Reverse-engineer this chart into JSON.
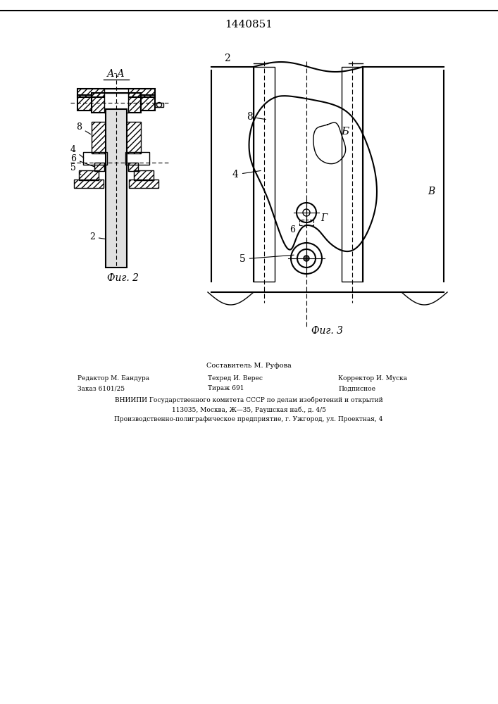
{
  "title": "1440851",
  "fig2_label": "Фиг. 2",
  "fig3_label": "Фиг. 3",
  "section_label": "А-А",
  "bg_color": "#ffffff",
  "line_color": "#000000",
  "footer_col1_line1": "Редактор М. Бандура",
  "footer_col2_line1": "Составитель М. Руфова",
  "footer_col3_line1": "Корректор И. Муска",
  "footer_col2_line2": "Техред И. Верес",
  "footer_col1_line2": "Заказ 6101/25",
  "footer_col2_line3": "Тираж 691",
  "footer_col3_line2": "Подписное",
  "footer_line3": "ВНИИПИ Государственного комитета СССР по делам изобретений и открытий",
  "footer_line4": "113035, Москва, Ж—35, Раушская наб., д. 4/5",
  "footer_line5": "Производственно-полиграфическое предприятие, г. Ужгород, ул. Проектная, 4"
}
